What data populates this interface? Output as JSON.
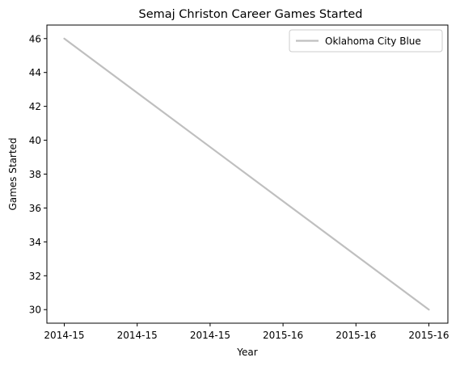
{
  "chart_data": {
    "type": "line",
    "title": "Semaj Christon Career Games Started",
    "xlabel": "Year",
    "ylabel": "Games Started",
    "x": [
      0,
      1
    ],
    "x_tick_labels": [
      "2014-15",
      "2014-15",
      "2014-15",
      "2015-16",
      "2015-16",
      "2015-16"
    ],
    "x_tick_positions": [
      0,
      0.2,
      0.4,
      0.6,
      0.8,
      1.0
    ],
    "ylim": [
      29.2,
      46.8
    ],
    "yticks": [
      30,
      32,
      34,
      36,
      38,
      40,
      42,
      44,
      46
    ],
    "grid": false,
    "legend_position": "top-right",
    "series": [
      {
        "name": "Oklahoma City Blue",
        "values": [
          46,
          30
        ],
        "color": "#bfbfbf"
      }
    ]
  }
}
